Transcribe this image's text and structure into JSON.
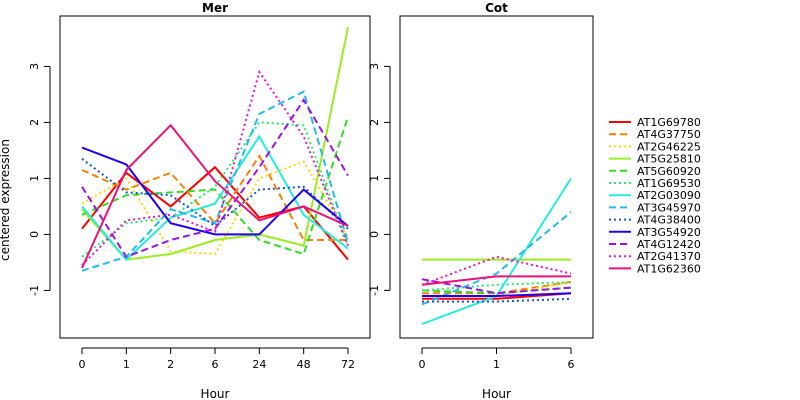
{
  "chart_data": {
    "type": "line",
    "ylabel": "centered expression",
    "ylim": [
      -1.85,
      3.9
    ],
    "yticks": [
      -1,
      0,
      1,
      2,
      3
    ],
    "legend_position": "right",
    "series": [
      {
        "name": "AT1G69780",
        "color": "#ff0000",
        "dash": "solid"
      },
      {
        "name": "AT4G37750",
        "color": "#ff7f00",
        "dash": "dashed"
      },
      {
        "name": "AT2G46225",
        "color": "#ffd700",
        "dash": "dotted"
      },
      {
        "name": "AT5G25810",
        "color": "#99ee22",
        "dash": "solid"
      },
      {
        "name": "AT5G60920",
        "color": "#33dd22",
        "dash": "dashed"
      },
      {
        "name": "AT1G69530",
        "color": "#22ee66",
        "dash": "dotted"
      },
      {
        "name": "AT2G03090",
        "color": "#22eedd",
        "dash": "solid"
      },
      {
        "name": "AT3G45970",
        "color": "#22bbee",
        "dash": "dashed"
      },
      {
        "name": "AT4G38400",
        "color": "#1155ee",
        "dash": "dotted"
      },
      {
        "name": "AT3G54920",
        "color": "#2200ee",
        "dash": "solid"
      },
      {
        "name": "AT4G12420",
        "color": "#9911ee",
        "dash": "dashed"
      },
      {
        "name": "AT2G41370",
        "color": "#ee11cc",
        "dash": "dotted"
      },
      {
        "name": "AT1G62360",
        "color": "#ee1177",
        "dash": "solid"
      }
    ],
    "panels": [
      {
        "title": "Mer",
        "xlabel": "Hour",
        "categories": [
          "0",
          "1",
          "2",
          "6",
          "24",
          "48",
          "72"
        ],
        "values": [
          [
            0.1,
            1.1,
            0.5,
            1.2,
            0.3,
            0.5,
            -0.45
          ],
          [
            1.15,
            0.8,
            1.1,
            0.2,
            1.4,
            -0.1,
            -0.1
          ],
          [
            0.55,
            1.0,
            -0.3,
            -0.35,
            1.0,
            1.3,
            -0.05
          ],
          [
            0.45,
            -0.45,
            -0.35,
            -0.1,
            0.0,
            -0.2,
            3.7
          ],
          [
            0.35,
            0.7,
            0.75,
            0.8,
            -0.1,
            -0.35,
            2.1
          ],
          [
            -0.4,
            0.2,
            0.3,
            0.85,
            2.0,
            1.95,
            -0.2
          ],
          [
            0.5,
            -0.45,
            0.3,
            0.55,
            1.75,
            0.35,
            -0.25
          ],
          [
            -0.65,
            -0.4,
            0.45,
            0.2,
            2.15,
            2.55,
            -0.15
          ],
          [
            1.35,
            0.75,
            0.7,
            0.15,
            0.8,
            0.85,
            0.1
          ],
          [
            1.55,
            1.25,
            0.2,
            0.0,
            0.0,
            0.8,
            0.15
          ],
          [
            0.85,
            -0.4,
            -0.1,
            0.1,
            1.2,
            2.4,
            1.05
          ],
          [
            -0.55,
            0.25,
            0.35,
            0.05,
            2.9,
            1.75,
            -0.2
          ],
          [
            -0.6,
            1.15,
            1.95,
            0.95,
            0.25,
            0.5,
            0.15
          ]
        ]
      },
      {
        "title": "Cot",
        "xlabel": "Hour",
        "categories": [
          "0",
          "1",
          "6"
        ],
        "values": [
          [
            -1.15,
            -1.15,
            -1.05
          ],
          [
            -1.05,
            -1.05,
            -0.85
          ],
          [
            -1.1,
            -1.1,
            -0.85
          ],
          [
            -0.45,
            -0.45,
            -0.45
          ],
          [
            -1.0,
            -1.05,
            -0.95
          ],
          [
            -1.0,
            -0.9,
            -0.85
          ],
          [
            -1.6,
            -1.1,
            1.0
          ],
          [
            -1.25,
            -0.7,
            0.4
          ],
          [
            -1.2,
            -1.2,
            -1.15
          ],
          [
            -1.1,
            -1.1,
            -1.05
          ],
          [
            -0.8,
            -1.05,
            -0.95
          ],
          [
            -0.9,
            -0.4,
            -0.7
          ],
          [
            -0.9,
            -0.75,
            -0.75
          ]
        ]
      }
    ]
  }
}
